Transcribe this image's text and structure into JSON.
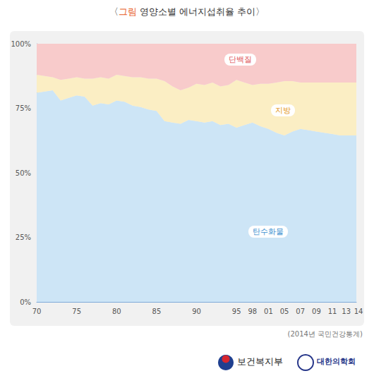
{
  "chart_data": {
    "type": "area",
    "title": "〈그림 영양소별 에너지섭취율 추이〉",
    "source": "(2014년 국민건강통계)",
    "logos": [
      "보건복지부",
      "대한의학회"
    ],
    "categories": [
      "70",
      null,
      null,
      null,
      null,
      "75",
      null,
      null,
      null,
      null,
      "80",
      null,
      null,
      null,
      null,
      "85",
      null,
      null,
      null,
      null,
      "90",
      null,
      null,
      null,
      null,
      "95",
      null,
      "98",
      null,
      "01",
      null,
      "05",
      null,
      "07",
      null,
      "09",
      null,
      "11",
      null,
      "13",
      "14"
    ],
    "series": [
      {
        "name": "탄수화물",
        "color": "#cde5f6",
        "values": [
          81.0,
          81.5,
          82.0,
          78.0,
          79.0,
          80.0,
          79.5,
          76.0,
          77.0,
          76.5,
          78.0,
          77.5,
          76.0,
          75.5,
          74.5,
          74.0,
          70.0,
          69.5,
          69.0,
          70.5,
          70.0,
          69.5,
          70.0,
          68.5,
          69.0,
          67.5,
          68.5,
          69.5,
          68.0,
          67.0,
          65.5,
          64.5,
          66.0,
          67.0,
          66.5,
          66.0,
          65.5,
          65.0,
          64.5,
          64.5,
          64.5
        ]
      },
      {
        "name": "지방",
        "color": "#fbeec4",
        "values": [
          7.0,
          6.0,
          5.0,
          8.0,
          7.5,
          7.0,
          7.0,
          10.5,
          10.0,
          10.0,
          10.0,
          10.0,
          11.0,
          11.5,
          12.0,
          12.5,
          15.5,
          14.0,
          13.0,
          12.5,
          14.5,
          14.5,
          15.0,
          15.0,
          15.0,
          18.5,
          16.5,
          14.5,
          16.5,
          17.5,
          19.5,
          21.0,
          19.5,
          18.0,
          18.5,
          19.0,
          19.5,
          20.0,
          20.5,
          20.5,
          20.5
        ]
      },
      {
        "name": "단백질",
        "color": "#f8cbcb",
        "values": [
          12.0,
          12.5,
          13.0,
          14.0,
          13.5,
          13.0,
          13.5,
          13.5,
          13.0,
          13.5,
          12.0,
          12.5,
          13.0,
          13.0,
          13.5,
          13.5,
          14.5,
          16.5,
          18.0,
          17.0,
          15.5,
          16.0,
          15.0,
          16.5,
          16.0,
          14.0,
          15.0,
          16.0,
          15.5,
          15.5,
          15.0,
          14.5,
          14.5,
          15.0,
          15.0,
          15.0,
          15.0,
          15.0,
          15.0,
          15.0,
          15.0
        ]
      }
    ],
    "stacked": true,
    "ylim": [
      0,
      100
    ],
    "yticks": [
      {
        "value": 0,
        "label": "0%"
      },
      {
        "value": 25,
        "label": "25%"
      },
      {
        "value": 50,
        "label": "50%"
      },
      {
        "value": 75,
        "label": "75%"
      },
      {
        "value": 100,
        "label": "100%"
      }
    ],
    "grid": false
  }
}
